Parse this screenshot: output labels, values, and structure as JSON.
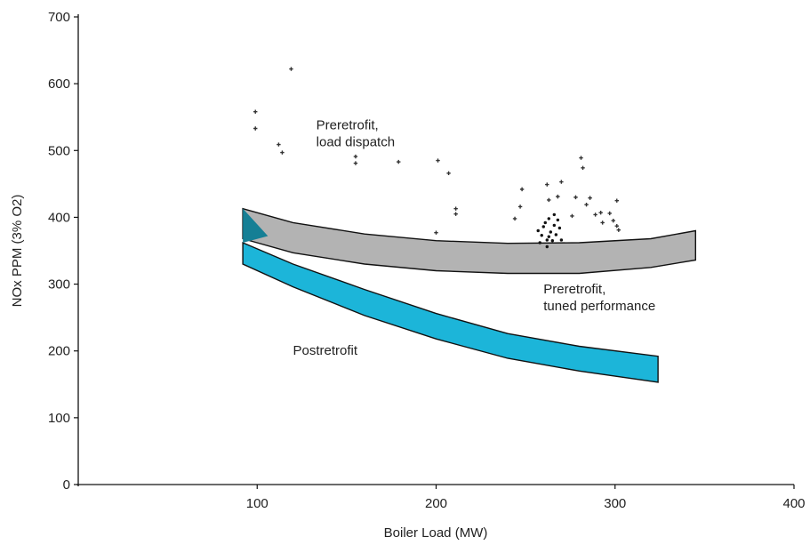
{
  "chart_data": {
    "type": "scatter",
    "xlabel": "Boiler Load (MW)",
    "ylabel": "NOx PPM (3% O2)",
    "xlim": [
      0,
      400
    ],
    "ylim": [
      0,
      700
    ],
    "x_ticks": [
      100,
      200,
      300,
      400
    ],
    "y_ticks": [
      0,
      100,
      200,
      300,
      400,
      500,
      600,
      700
    ],
    "grid": false,
    "colors": {
      "band_preretrofit": "#b3b3b3",
      "band_postretrofit": "#1cb5d9",
      "band_overlap": "#157f95",
      "outline": "#111111",
      "points": "#333333"
    },
    "annotations": [
      {
        "lines": [
          "Preretrofit,",
          "load dispatch"
        ],
        "x": 133,
        "y_top": 550
      },
      {
        "lines": [
          "Preretrofit,",
          "tuned performance"
        ],
        "x": 260,
        "y_top": 305
      },
      {
        "lines": [
          "Postretrofit"
        ],
        "x": 120,
        "y_top": 213
      }
    ],
    "series": [
      {
        "kind": "points",
        "marker": "plus",
        "x": [
          99,
          99,
          112,
          114,
          119,
          155,
          155,
          179,
          201,
          207,
          211,
          211,
          244,
          247,
          248,
          262,
          263,
          268,
          270,
          276,
          278,
          281,
          282,
          284,
          286,
          289,
          292,
          293,
          297,
          299,
          301,
          301,
          302,
          200
        ],
        "y": [
          558,
          533,
          509,
          497,
          622,
          491,
          481,
          483,
          485,
          466,
          413,
          405,
          398,
          416,
          442,
          449,
          426,
          431,
          453,
          402,
          430,
          489,
          474,
          419,
          429,
          404,
          407,
          392,
          406,
          395,
          425,
          387,
          381,
          377
        ]
      },
      {
        "kind": "points",
        "marker": "dot",
        "x": [
          257,
          259,
          260,
          261,
          262,
          263,
          264,
          265,
          266,
          266,
          267,
          268,
          258,
          263,
          262,
          269,
          270
        ],
        "y": [
          380,
          373,
          386,
          392,
          366,
          398,
          378,
          365,
          404,
          388,
          374,
          396,
          362,
          371,
          356,
          384,
          366
        ]
      },
      {
        "kind": "band",
        "x": [
          92,
          120,
          160,
          200,
          240,
          280,
          320,
          345
        ],
        "upper": [
          413,
          392,
          375,
          365,
          361,
          362,
          368,
          380
        ],
        "lower": [
          368,
          347,
          330,
          320,
          316,
          316,
          325,
          336
        ]
      },
      {
        "kind": "band",
        "x": [
          92,
          120,
          160,
          200,
          240,
          280,
          324
        ],
        "upper": [
          362,
          330,
          292,
          256,
          226,
          207,
          192
        ],
        "lower": [
          330,
          296,
          253,
          218,
          189,
          170,
          153
        ]
      }
    ]
  }
}
